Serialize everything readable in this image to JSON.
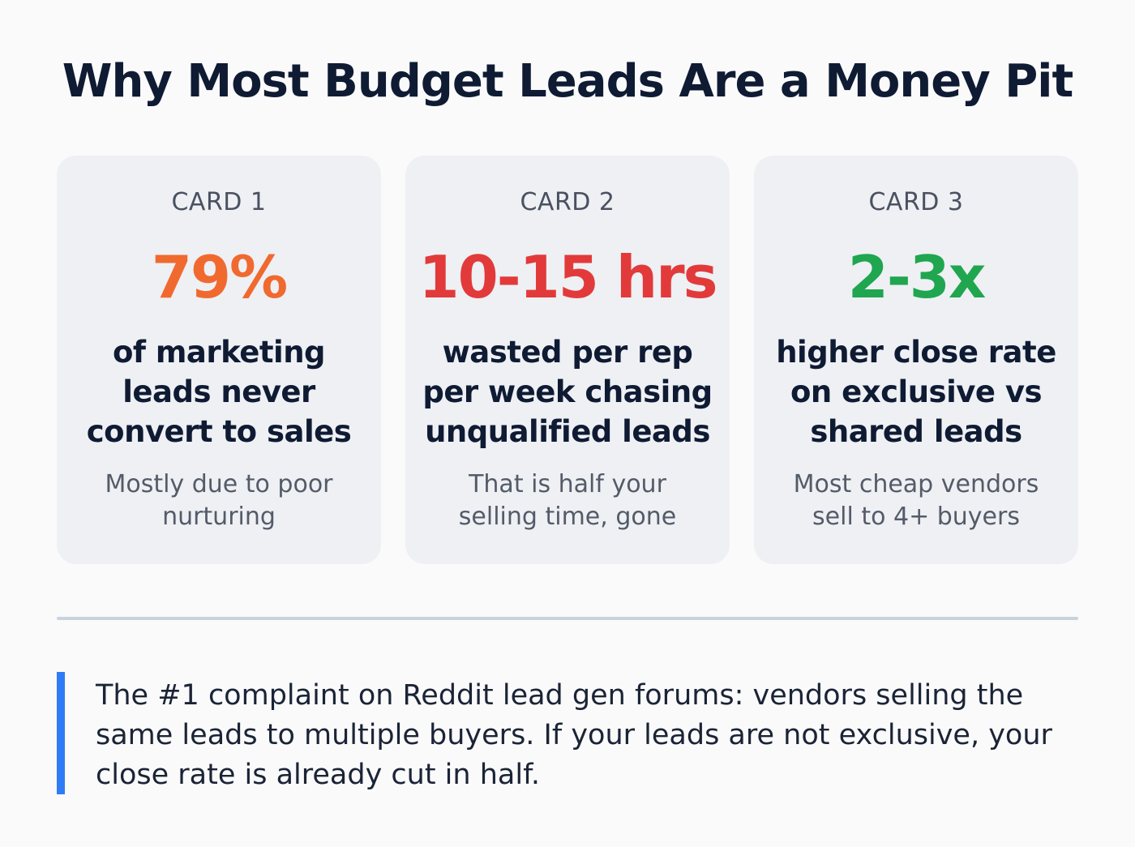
{
  "header": {
    "title": "Why Most Budget Leads Are a Money Pit"
  },
  "colors": {
    "card1_accent": "#f06a2f",
    "card2_accent": "#e23a3a",
    "card3_accent": "#1fa64f",
    "quote_bar": "#2f7df6"
  },
  "cards": [
    {
      "label": "CARD 1",
      "stat": "79%",
      "description": "of marketing leads never convert to sales",
      "note": "Mostly due to poor nurturing"
    },
    {
      "label": "CARD 2",
      "stat": "10-15 hrs",
      "description": "wasted per rep per week chasing unqualified leads",
      "note": "That is half your selling time, gone"
    },
    {
      "label": "CARD 3",
      "stat": "2-3x",
      "description": "higher close rate on exclusive vs shared leads",
      "note": "Most cheap vendors sell to 4+ buyers"
    }
  ],
  "callout": {
    "text": "The #1 complaint on Reddit lead gen forums: vendors selling the same leads to multiple buyers. If your leads are not exclusive, your close rate is already cut in half."
  }
}
